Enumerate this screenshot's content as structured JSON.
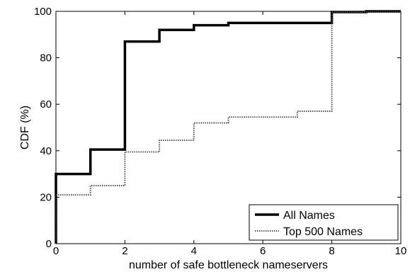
{
  "chart_data": {
    "type": "line",
    "xlabel": "number of safe bottleneck nameservers",
    "ylabel": "CDF (%)",
    "xlim": [
      0,
      10
    ],
    "ylim": [
      0,
      100
    ],
    "xticks": [
      0,
      2,
      4,
      6,
      8,
      10
    ],
    "yticks": [
      0,
      20,
      40,
      60,
      80,
      100
    ],
    "grid": false,
    "legend_position": "bottom-right",
    "step": true,
    "series": [
      {
        "name": "All Names",
        "style": "solid",
        "color": "#000000",
        "x": [
          0,
          0,
          1,
          2,
          3,
          4,
          5,
          8,
          9,
          10
        ],
        "y": [
          0,
          30,
          40.5,
          87,
          92,
          94,
          95,
          99.7,
          100,
          100
        ]
      },
      {
        "name": "Top 500 Names",
        "style": "dotted",
        "color": "#555555",
        "x": [
          0,
          0,
          1,
          2,
          3,
          4,
          5,
          7,
          8,
          9,
          10
        ],
        "y": [
          0,
          21,
          25,
          39.5,
          44.5,
          52,
          54.5,
          57,
          99.7,
          100,
          100
        ]
      }
    ]
  }
}
